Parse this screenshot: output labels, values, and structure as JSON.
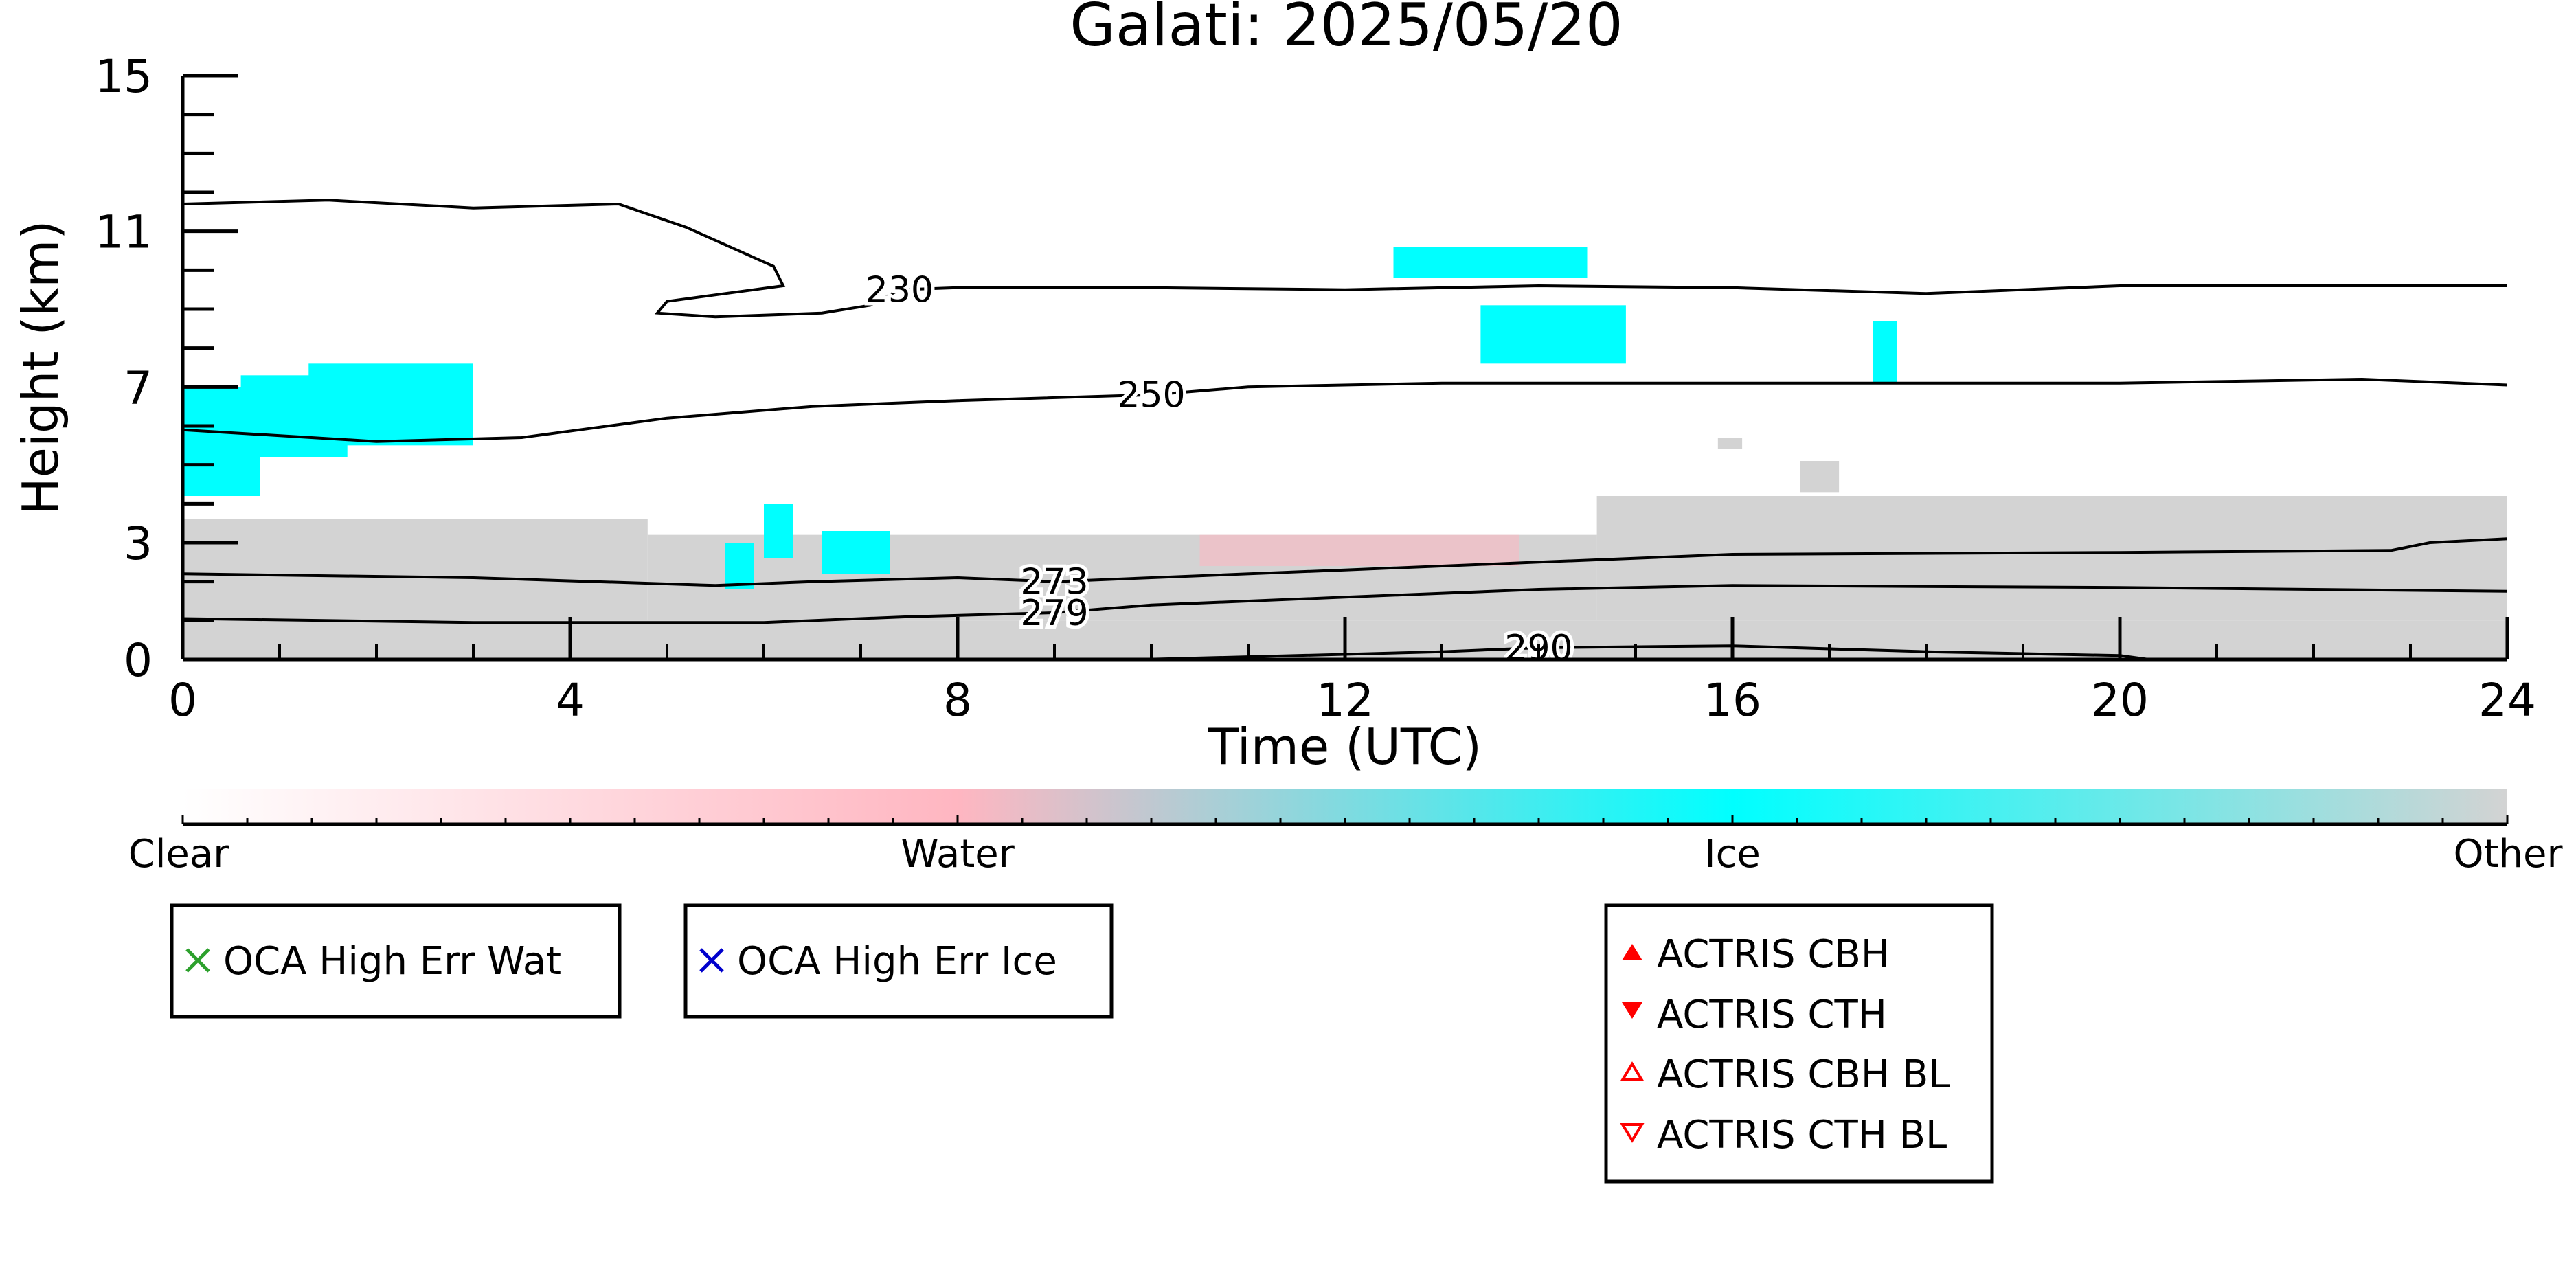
{
  "chart_data": {
    "type": "heatmap",
    "title": "Galati: 2025/05/20",
    "xlabel": "Time (UTC)",
    "ylabel": "Height (km)",
    "xlim": [
      0,
      24
    ],
    "ylim": [
      0,
      15
    ],
    "x_ticks": [
      "0",
      "4",
      "8",
      "12",
      "16",
      "20",
      "24"
    ],
    "y_ticks": [
      "0",
      "3",
      "7",
      "11",
      "15"
    ],
    "categories": [
      "Clear",
      "Water",
      "Ice",
      "Other"
    ],
    "colorbar": {
      "labels": [
        "Clear",
        "Water",
        "Ice",
        "Other"
      ],
      "colors": [
        "#ffffff",
        "#ffb6c1",
        "#00ffff",
        "#d3d3d3"
      ]
    },
    "contours": [
      {
        "label": "230",
        "points": [
          [
            0,
            11.7
          ],
          [
            1.5,
            11.8
          ],
          [
            3,
            11.6
          ],
          [
            4.5,
            11.7
          ],
          [
            5.2,
            11.1
          ],
          [
            6.1,
            10.1
          ],
          [
            6.2,
            9.6
          ],
          [
            5.0,
            9.2
          ],
          [
            4.9,
            8.9
          ],
          [
            5.5,
            8.8
          ],
          [
            6.6,
            8.9
          ],
          [
            7.1,
            9.1
          ],
          [
            7.4,
            9.5
          ],
          [
            8,
            9.55
          ],
          [
            10,
            9.55
          ],
          [
            12,
            9.5
          ],
          [
            14,
            9.6
          ],
          [
            16,
            9.55
          ],
          [
            18,
            9.4
          ],
          [
            20,
            9.6
          ],
          [
            24,
            9.6
          ]
        ]
      },
      {
        "label": "250",
        "points": [
          [
            0,
            5.9
          ],
          [
            2,
            5.6
          ],
          [
            3.5,
            5.7
          ],
          [
            5,
            6.2
          ],
          [
            6.5,
            6.5
          ],
          [
            8,
            6.65
          ],
          [
            10,
            6.8
          ],
          [
            11,
            7.0
          ],
          [
            13,
            7.1
          ],
          [
            16,
            7.1
          ],
          [
            20,
            7.1
          ],
          [
            22.5,
            7.2
          ],
          [
            24,
            7.05
          ]
        ]
      },
      {
        "label": "273",
        "points": [
          [
            0,
            2.2
          ],
          [
            3,
            2.1
          ],
          [
            5.5,
            1.9
          ],
          [
            6.5,
            2.0
          ],
          [
            8,
            2.1
          ],
          [
            9,
            2.0
          ],
          [
            10,
            2.1
          ],
          [
            12,
            2.3
          ],
          [
            14,
            2.5
          ],
          [
            16,
            2.7
          ],
          [
            20,
            2.75
          ],
          [
            22.8,
            2.8
          ],
          [
            23.2,
            3.0
          ],
          [
            24,
            3.1
          ]
        ]
      },
      {
        "label": "279",
        "points": [
          [
            0,
            1.05
          ],
          [
            3,
            0.95
          ],
          [
            6,
            0.95
          ],
          [
            7.5,
            1.1
          ],
          [
            9,
            1.2
          ],
          [
            10,
            1.4
          ],
          [
            12,
            1.6
          ],
          [
            14,
            1.8
          ],
          [
            16,
            1.9
          ],
          [
            20,
            1.85
          ],
          [
            24,
            1.75
          ]
        ]
      },
      {
        "label": "290",
        "points": [
          [
            9.9,
            0.0
          ],
          [
            11.5,
            0.1
          ],
          [
            13,
            0.2
          ],
          [
            14,
            0.3
          ],
          [
            16,
            0.35
          ],
          [
            18,
            0.2
          ],
          [
            20,
            0.1
          ],
          [
            20.3,
            0.0
          ]
        ]
      }
    ],
    "classification_regions": [
      {
        "class": "Other",
        "x0": 0,
        "x1": 24,
        "y0": 0,
        "y1": 1.0
      },
      {
        "class": "Other",
        "x0": 0,
        "x1": 4.8,
        "y0": 1.0,
        "y1": 3.6
      },
      {
        "class": "Other",
        "x0": 4.8,
        "x1": 14.6,
        "y0": 1.0,
        "y1": 3.2
      },
      {
        "class": "Other",
        "x0": 14.6,
        "x1": 24,
        "y0": 1.0,
        "y1": 4.2
      },
      {
        "class": "Ice",
        "x0": 0.0,
        "x1": 0.8,
        "y0": 4.2,
        "y1": 7.0
      },
      {
        "class": "Ice",
        "x0": 0.6,
        "x1": 1.7,
        "y0": 5.2,
        "y1": 7.3
      },
      {
        "class": "Ice",
        "x0": 1.3,
        "x1": 3.0,
        "y0": 5.5,
        "y1": 7.6
      },
      {
        "class": "Ice",
        "x0": 5.6,
        "x1": 5.9,
        "y0": 1.8,
        "y1": 3.0
      },
      {
        "class": "Ice",
        "x0": 6.0,
        "x1": 6.3,
        "y0": 2.6,
        "y1": 4.0
      },
      {
        "class": "Ice",
        "x0": 6.6,
        "x1": 7.3,
        "y0": 2.2,
        "y1": 3.3
      },
      {
        "class": "Ice",
        "x0": 12.5,
        "x1": 14.5,
        "y0": 9.8,
        "y1": 10.6
      },
      {
        "class": "Ice",
        "x0": 13.4,
        "x1": 14.9,
        "y0": 7.6,
        "y1": 9.1
      },
      {
        "class": "Ice",
        "x0": 17.45,
        "x1": 17.7,
        "y0": 7.1,
        "y1": 8.7
      },
      {
        "class": "Other",
        "x0": 16.7,
        "x1": 17.1,
        "y0": 4.3,
        "y1": 5.1
      },
      {
        "class": "Other",
        "x0": 15.85,
        "x1": 16.1,
        "y0": 5.4,
        "y1": 5.7
      },
      {
        "class": "Water",
        "x0": 10.5,
        "x1": 13.8,
        "y0": 2.4,
        "y1": 3.2
      }
    ]
  },
  "legends": {
    "oca": [
      {
        "label": "OCA High Err Wat",
        "color": "#2ca02c",
        "marker": "x"
      },
      {
        "label": "OCA High Err Ice",
        "color": "#0000cc",
        "marker": "x"
      }
    ],
    "actris": [
      {
        "label": "ACTRIS CBH",
        "color": "#ff0000",
        "marker": "triangle-up-filled"
      },
      {
        "label": "ACTRIS CTH",
        "color": "#ff0000",
        "marker": "triangle-down-filled"
      },
      {
        "label": "ACTRIS CBH BL",
        "color": "#ff0000",
        "marker": "triangle-up-open"
      },
      {
        "label": "ACTRIS CTH BL",
        "color": "#ff0000",
        "marker": "triangle-down-open"
      }
    ]
  }
}
